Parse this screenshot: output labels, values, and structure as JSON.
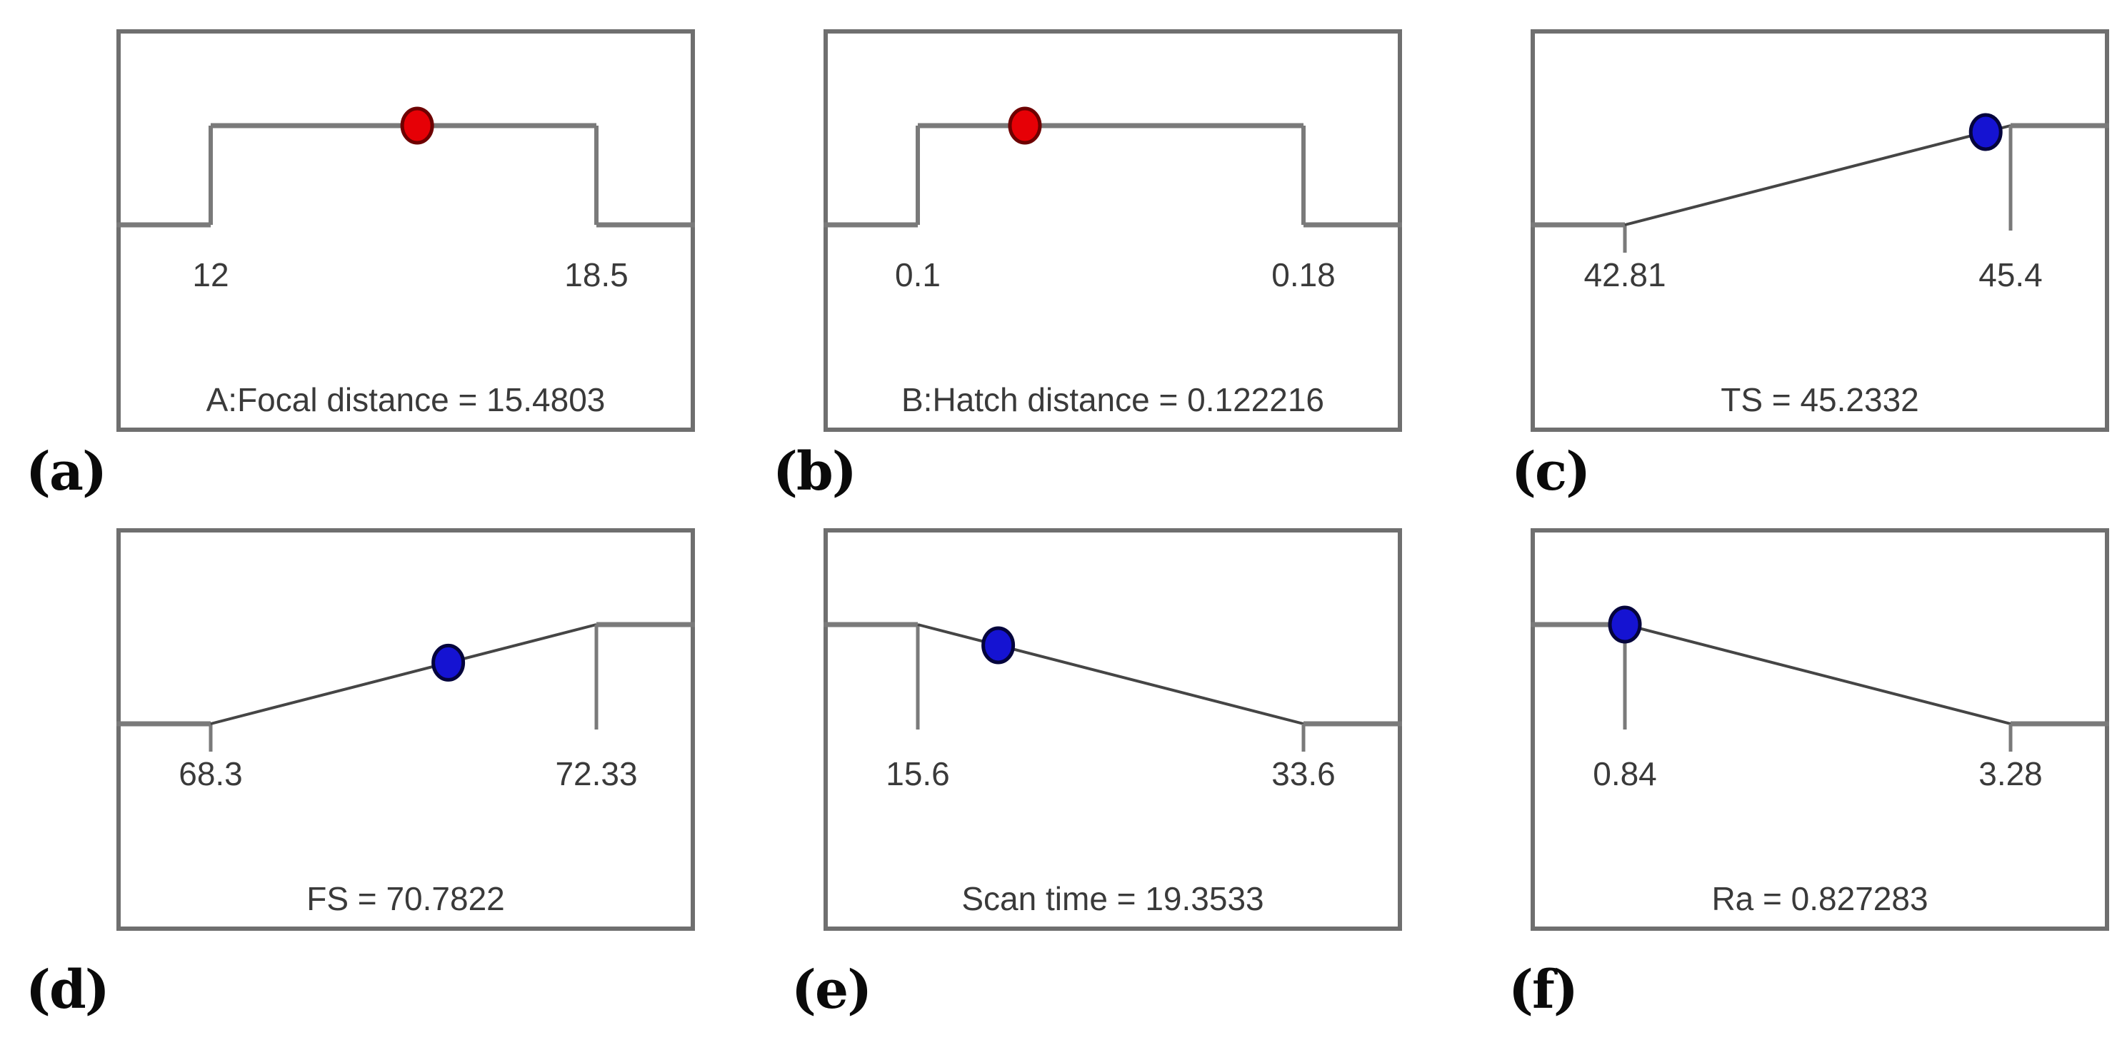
{
  "page": {
    "background": "#ffffff"
  },
  "colors": {
    "frame": "#6f6f6f",
    "ramp_line": "#7a7a7a",
    "diagonal_line": "#454545",
    "tick_line": "#7a7a7a",
    "text": "#3a3a3a",
    "red_dot_fill": "#e60006",
    "red_dot_stroke": "#6e0000",
    "blue_dot_fill": "#1513d2",
    "blue_dot_stroke": "#04043c"
  },
  "chart_data": [
    {
      "panel_label": "(a)",
      "name": "focal-distance",
      "caption": "A:Focal distance = 15.4803",
      "type": "factor",
      "dot_color": "red",
      "limit_low": 12,
      "limit_high": 18.5,
      "limit_low_label": "12",
      "limit_high_label": "18.5",
      "value": 15.4803
    },
    {
      "panel_label": "(b)",
      "name": "hatch-distance",
      "caption": "B:Hatch distance = 0.122216",
      "type": "factor",
      "dot_color": "red",
      "limit_low": 0.1,
      "limit_high": 0.18,
      "limit_low_label": "0.1",
      "limit_high_label": "0.18",
      "value": 0.122216
    },
    {
      "panel_label": "(c)",
      "name": "ts",
      "caption": "TS = 45.2332",
      "type": "maximize",
      "dot_color": "blue",
      "limit_low": 42.81,
      "limit_high": 45.4,
      "limit_low_label": "42.81",
      "limit_high_label": "45.4",
      "value": 45.2332
    },
    {
      "panel_label": "(d)",
      "name": "fs",
      "caption": "FS = 70.7822",
      "type": "maximize",
      "dot_color": "blue",
      "limit_low": 68.3,
      "limit_high": 72.33,
      "limit_low_label": "68.3",
      "limit_high_label": "72.33",
      "value": 70.7822
    },
    {
      "panel_label": "(e)",
      "name": "scan-time",
      "caption": "Scan time = 19.3533",
      "type": "minimize",
      "dot_color": "blue",
      "limit_low": 15.6,
      "limit_high": 33.6,
      "limit_low_label": "15.6",
      "limit_high_label": "33.6",
      "value": 19.3533
    },
    {
      "panel_label": "(f)",
      "name": "ra",
      "caption": "Ra = 0.827283",
      "type": "minimize",
      "dot_color": "blue",
      "limit_low": 0.84,
      "limit_high": 3.28,
      "limit_low_label": "0.84",
      "limit_high_label": "3.28",
      "value": 0.827283
    }
  ]
}
